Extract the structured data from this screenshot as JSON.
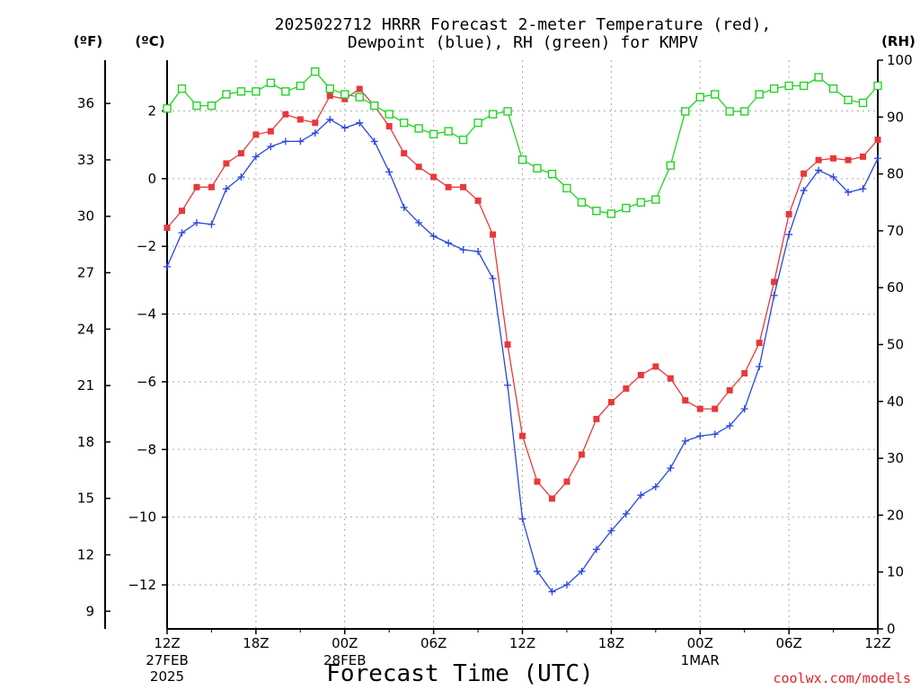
{
  "chart_data": {
    "type": "line",
    "title_line1": "2025022712 HRRR Forecast 2-meter Temperature (red),",
    "title_line2": "Dewpoint (blue), RH (green) for KMPV",
    "xlabel": "Forecast Time (UTC)",
    "credit": "coolwx.com/models",
    "units": {
      "fahrenheit": "(ºF)",
      "celsius": "(ºC)",
      "rh": "(RH)"
    },
    "x_ticks": [
      {
        "hour": 0,
        "label": "12Z",
        "sub1": "27FEB",
        "sub2": "2025"
      },
      {
        "hour": 6,
        "label": "18Z"
      },
      {
        "hour": 12,
        "label": "00Z",
        "sub1": "28FEB"
      },
      {
        "hour": 18,
        "label": "06Z"
      },
      {
        "hour": 24,
        "label": "12Z"
      },
      {
        "hour": 30,
        "label": "18Z"
      },
      {
        "hour": 36,
        "label": "00Z",
        "sub1": "1MAR"
      },
      {
        "hour": 42,
        "label": "06Z"
      },
      {
        "hour": 48,
        "label": "12Z"
      }
    ],
    "celsius_ticks": [
      "2",
      "0",
      "−2",
      "−4",
      "−6",
      "−8",
      "−10",
      "−12"
    ],
    "fahrenheit_ticks": [
      "36",
      "33",
      "30",
      "27",
      "24",
      "21",
      "18",
      "15",
      "12",
      "9"
    ],
    "rh_ticks": [
      "100",
      "90",
      "80",
      "70",
      "60",
      "50",
      "40",
      "30",
      "20",
      "10",
      "0"
    ],
    "x_range_hours": [
      0,
      48
    ],
    "celsius_range": [
      -13.3,
      3.5
    ],
    "rh_range": [
      0,
      100
    ],
    "grid": true,
    "colors": {
      "temperature": "#e8383a",
      "dewpoint": "#2846e0",
      "rh": "#22d422"
    },
    "series": [
      {
        "key": "temperature",
        "unit": "C",
        "values": [
          -1.45,
          -0.95,
          -0.25,
          -0.25,
          0.45,
          0.75,
          1.3,
          1.4,
          1.9,
          1.75,
          1.65,
          2.45,
          2.35,
          2.65,
          2.15,
          1.55,
          0.75,
          0.35,
          0.05,
          -0.25,
          -0.25,
          -0.65,
          -1.65,
          -4.9,
          -7.6,
          -8.95,
          -9.45,
          -8.95,
          -8.15,
          -7.1,
          -6.6,
          -6.2,
          -5.8,
          -5.55,
          -5.9,
          -6.55,
          -6.8,
          -6.8,
          -6.25,
          -5.75,
          -4.85,
          -3.05,
          -1.05,
          0.15,
          0.55,
          0.6,
          0.55,
          0.65,
          1.15
        ]
      },
      {
        "key": "dewpoint",
        "unit": "C",
        "values": [
          -2.6,
          -1.6,
          -1.3,
          -1.35,
          -0.3,
          0.05,
          0.65,
          0.95,
          1.1,
          1.1,
          1.35,
          1.75,
          1.5,
          1.65,
          1.1,
          0.2,
          -0.85,
          -1.3,
          -1.7,
          -1.9,
          -2.1,
          -2.15,
          -2.95,
          -6.1,
          -10.05,
          -11.6,
          -12.2,
          -12.0,
          -11.6,
          -10.95,
          -10.4,
          -9.9,
          -9.35,
          -9.1,
          -8.55,
          -7.75,
          -7.6,
          -7.55,
          -7.3,
          -6.8,
          -5.55,
          -3.45,
          -1.65,
          -0.35,
          0.25,
          0.05,
          -0.4,
          -0.3,
          0.6
        ]
      },
      {
        "key": "rh",
        "unit": "%",
        "values": [
          91.5,
          95,
          92,
          92,
          94,
          94.5,
          94.5,
          96,
          94.5,
          95.5,
          98,
          95,
          94,
          93.5,
          92,
          90.5,
          89,
          88,
          87,
          87.5,
          86,
          89,
          90.5,
          91,
          82.5,
          81,
          80,
          77.5,
          75,
          73.5,
          73,
          74,
          75,
          75.5,
          81.5,
          91,
          93.5,
          94,
          91,
          91,
          94,
          95,
          95.5,
          95.5,
          97,
          95,
          93,
          92.5,
          95.5
        ]
      }
    ]
  }
}
